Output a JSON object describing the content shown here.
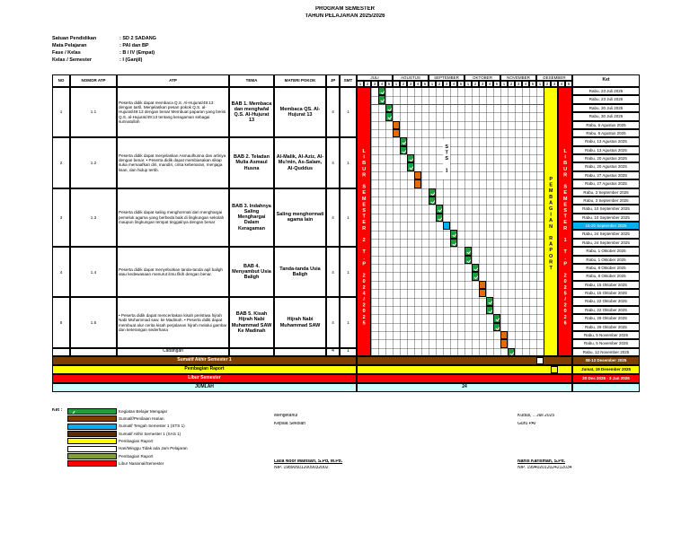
{
  "header": {
    "title": "PROGRAM SEMESTER",
    "subtitle": "TAHUN PELAJARAN 2025/2026"
  },
  "info": [
    {
      "label": "Satuan  Pendidikan",
      "value": ": SD 2 SADANG"
    },
    {
      "label": "Mata Pelajaran",
      "value": ": PAI dan BP"
    },
    {
      "label": "Fase / Kelas",
      "value": ": B /  IV (Empat)"
    },
    {
      "label": "Kelas / Semester",
      "value": ": I (Ganjil)"
    }
  ],
  "table": {
    "columns": [
      "NO",
      "NOMOR ATP",
      "ATP",
      "TEMA",
      "MATERI POKOK",
      "JP",
      "SMT"
    ],
    "months": [
      {
        "name": "JULI",
        "weeks": [
          1,
          2,
          3,
          4,
          5
        ]
      },
      {
        "name": "AGUSTUS",
        "weeks": [
          1,
          2,
          3,
          4,
          5
        ]
      },
      {
        "name": "SEPTEMBER",
        "weeks": [
          1,
          2,
          3,
          4,
          5
        ]
      },
      {
        "name": "OKTOBER",
        "weeks": [
          1,
          2,
          3,
          4,
          5
        ]
      },
      {
        "name": "NOVEMBER",
        "weeks": [
          1,
          2,
          3,
          4,
          5
        ]
      },
      {
        "name": "DESEMBER",
        "weeks": [
          1,
          2,
          3,
          4,
          5
        ]
      }
    ],
    "ket_header": "Ket",
    "rows": [
      {
        "no": 1,
        "atp_no": "1.1",
        "atp": "Peserta didik dapat membaca Q.S. Al-Hujurat/49:13 dengan tartil,  Menjelaskan pesan pokok Q.S. al-Hujurat/49:13 dengan benar Membuat paparan yang berisi Q.S. al-Hujurat/49:13 tentang keragaman sebagai sunnatullah",
        "tema": "BAB 1. Membaca dan menghafal Q.S. Al-Hujurat 13",
        "materi": "Membaca QS. Al-Hujurat 13",
        "jp": 4,
        "smt": 1
      },
      {
        "no": 2,
        "atp_no": "1.2",
        "atp": "Peserta didik dapat menjelaskan Asmaulhusna dan artinya dengan benar. • Peserta didik dapat membiasakan sikap suka memaafkan diri, mandiri, cinta kebenaran, menjaga lisan, dan hidup tertib.",
        "tema": "BAB 2. Teladan Mulia Asmaul Husna",
        "materi": "Al-Malik, Al-Aziz, Al- Mu'min, As-Salam, Al-Quddus",
        "jp": 4,
        "smt": 1
      },
      {
        "no": 3,
        "atp_no": "1.3",
        "atp": "Peserta didik dapat saling menghormati dan menghargai pemeluk agama yang berbeda baik di lingkungan sekolah maupun lingkungan tempat tinggalnya dengan benar",
        "tema": "BAB 3. Indahnya Saling Menghargai Dalam Keragaman",
        "materi": "Saling menghormati agama lain",
        "jp": 4,
        "smt": 1
      },
      {
        "no": 4,
        "atp_no": "1.4",
        "atp": "Peserta didik dapat menyebutkan tanda-tanda aqil baligh atau kedewasaan menurut ilmu fikih dengan benar.",
        "tema": "BAB 4. Menyambut Usia Baligh",
        "materi": "Tanda-tanda Usia Baligh",
        "jp": 4,
        "smt": 1
      },
      {
        "no": 5,
        "atp_no": "1.5",
        "atp": "• Peserta didik dapat menceritakan kisah peristiwa hijrah Nabi Muhammad saw. ke Madinah. • Peserta didik dapat membuat alur cerita kisah perjalanan hijrah melalui gambar dan keterangan sederhana",
        "tema": "BAB 5. Kisah Hijrah Nabi Muhammad SAW Ke Madinah",
        "materi": "Hijrah Nabi Muhammad SAW",
        "jp": 4,
        "smt": 1
      }
    ],
    "cadangan": {
      "label": "Cadangan",
      "jp": 4,
      "smt": 1
    },
    "ket": [
      "Rabu, 23 Juli 2025",
      "Rabu, 23 Juli 2025",
      "Rabu, 30 Juli 2025",
      "Rabu, 30 Juli 2025",
      "Rabu, 6 Agustus 2025",
      "Rabu, 6 Agustus 2025",
      "Rabu, 13 Agustus 2025",
      "Rabu, 13 Agustus 2025",
      "Rabu, 20 Agustus 2025",
      "Rabu, 20 Agustus 2025",
      "Rabu, 27 Agustus 2025",
      "Rabu, 27 Agustus 2025",
      "Rabu, 3 September 2025",
      "Rabu, 3 September 2025",
      "Rabu, 10 September 2025",
      "Rabu, 10 September 2025",
      "15-20 September 2025",
      "Rabu, 24 September 2025",
      "Rabu, 24 September 2025",
      "Rabu, 1 Oktober 2025",
      "Rabu, 1 Oktober 2025",
      "Rabu, 8 Oktober 2025",
      "Rabu, 8 Oktober 2025",
      "Rabu, 15 Oktober 2025",
      "Rabu, 15 Oktober 2025",
      "Rabu, 22 Oktober 2025",
      "Rabu, 22 Oktober 2025",
      "Rabu, 29 Oktober 2025",
      "Rabu, 29 Oktober 2025",
      "Rabu, 5 November 2025",
      "Rabu, 5 November 2025",
      "Rabu, 12 November 2025"
    ],
    "sas": {
      "label": "Sumatif Akhir Semester 1",
      "ket": "08-13 Desember 2025"
    },
    "raport": {
      "label": "Pembagian Raport",
      "ket": "Jumat, 19 Desember 2025"
    },
    "libur": {
      "label": "Libur Semester",
      "ket": "20 Des 2025 - 3 Jan 2026"
    },
    "jumlah": {
      "label": "JUMLAH",
      "total": 24
    },
    "vertical": {
      "libur_2": "LIBUR SEMESTER 2 T.P 2024/2025",
      "sts": "STS 1",
      "raport": "PEMBAGIAN RAPORT",
      "libur_1": "LIBUR SEMESTER 1 T.P 2025/2026"
    }
  },
  "legend": {
    "title": "Ket :",
    "items": [
      "Kegiatan Belajar Mengajar",
      "Sumatif/Penilaian Harian",
      "Sumatif Tengah Semester 1 (STS 1)",
      "Sumatif Akhir Semester 1 (SAS 1)",
      "Pembagian Raport",
      "Hari/Minggu Tidak ada Jam Pelajaran",
      "Pembagian Raport",
      "Libur Nasional/Semester"
    ]
  },
  "signatures": [
    {
      "place": "Mengetahui",
      "role": "Kepala Sekolah",
      "name": "Laila Noor Malitsari, S.Pd, M.Pd.",
      "nip": "NIP. 198905012009032002"
    },
    {
      "place": "Kudus,   .. Juli 2025",
      "role": "Guru PAI",
      "name": "Nanis Karisman, S.Pd.",
      "nip": "NIP. 199402012024212034"
    }
  ]
}
